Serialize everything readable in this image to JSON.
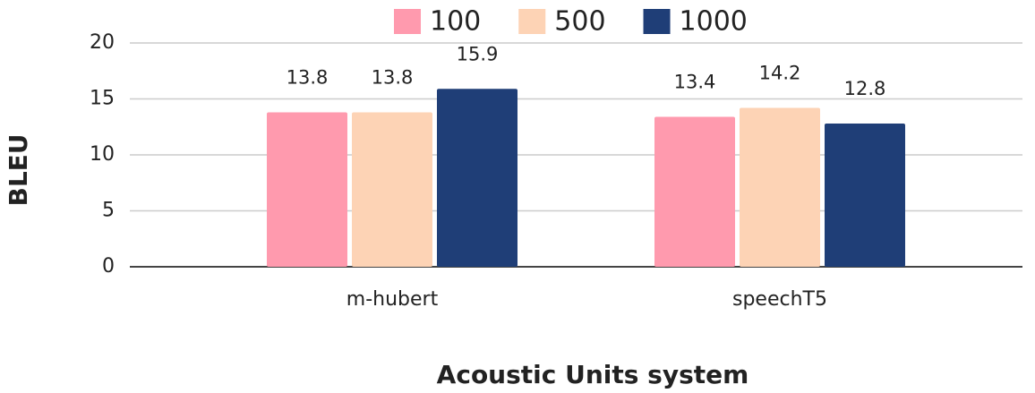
{
  "chart_data": {
    "type": "bar",
    "x_label": "Acoustic Units system",
    "y_label": "BLEU",
    "categories": [
      "m-hubert",
      "speechT5"
    ],
    "series": [
      {
        "name": "100",
        "color": "#ff9aae",
        "values": [
          13.8,
          13.4
        ]
      },
      {
        "name": "500",
        "color": "#fdd3b5",
        "values": [
          13.8,
          14.2
        ]
      },
      {
        "name": "1000",
        "color": "#1f3e77",
        "values": [
          15.9,
          12.8
        ]
      }
    ],
    "ylim": [
      0,
      20
    ],
    "yticks": [
      0,
      5,
      10,
      15,
      20
    ],
    "grid": true,
    "legend": "top"
  }
}
